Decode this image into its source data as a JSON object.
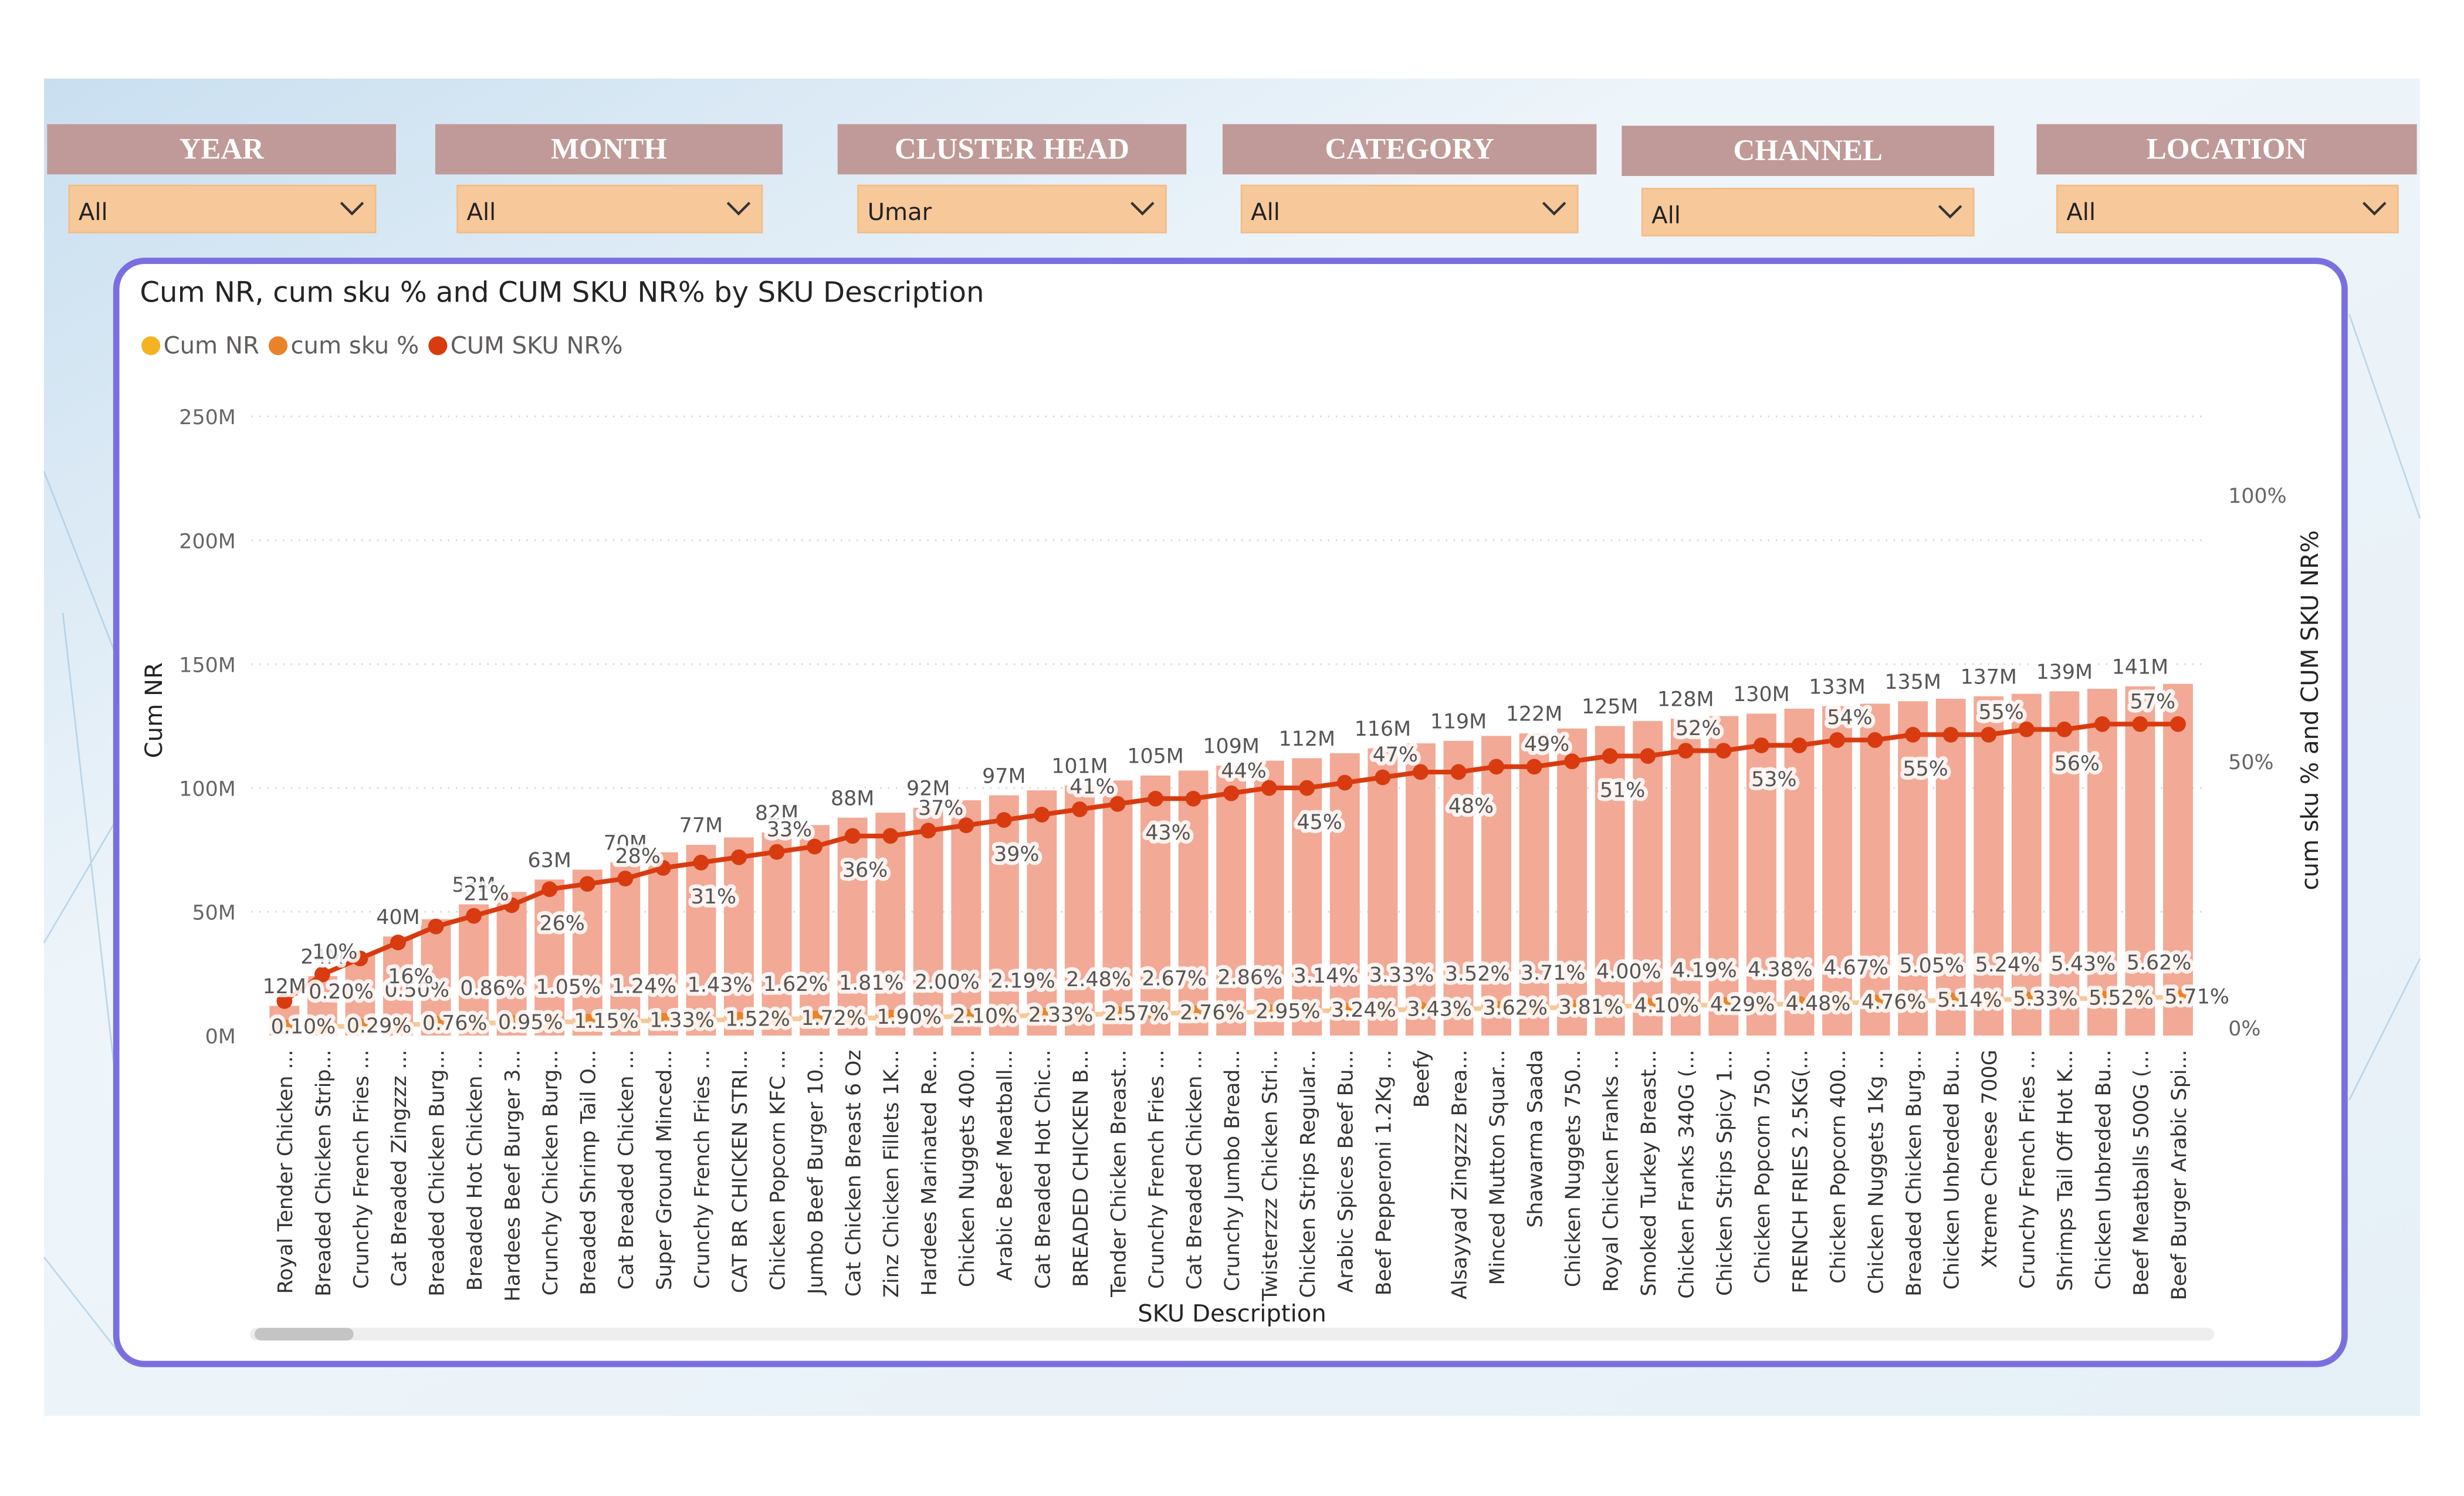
{
  "filters": [
    {
      "label": "YEAR",
      "value": "All"
    },
    {
      "label": "MONTH",
      "value": "All"
    },
    {
      "label": "CLUSTER HEAD",
      "value": "Umar"
    },
    {
      "label": "CATEGORY",
      "value": "All"
    },
    {
      "label": "CHANNEL",
      "value": "All"
    },
    {
      "label": "LOCATION",
      "value": "All"
    }
  ],
  "chart_data": {
    "type": "combo",
    "title": "Cum NR, cum sku % and CUM SKU NR% by SKU Description",
    "x_label": "SKU Description",
    "y_label": "Cum NR",
    "y2_label": "cum sku % and CUM SKU NR%",
    "grid": true,
    "legend": "top-left",
    "categories": [
      "Royal Tender Chicken ...",
      "Breaded Chicken Strip...",
      "Crunchy French Fries ...",
      "Cat Breaded Zingzzz ...",
      "Breaded Chicken Burg...",
      "Breaded Hot Chicken ...",
      "Hardees Beef Burger 3...",
      "Crunchy Chicken Burg...",
      "Breaded Shrimp Tail O...",
      "Cat Breaded Chicken ...",
      "Super Ground Minced...",
      "Crunchy French Fries ...",
      "CAT BR CHICKEN STRI...",
      "Chicken Popcorn KFC ...",
      "Jumbo Beef Burger 10...",
      "Cat Chicken Breast 6 Oz",
      "Zinz Chicken Fillets 1K...",
      "Hardees Marinated Re...",
      "Chicken Nuggets 400...",
      "Arabic Beef Meatball...",
      "Cat Breaded Hot Chic...",
      "BREADED CHICKEN B...",
      "Tender Chicken Breast...",
      "Crunchy French Fries ...",
      "Cat Breaded Chicken ...",
      "Crunchy Jumbo Bread...",
      "Twisterzzz Chicken Stri...",
      "Chicken Strips Regular...",
      "Arabic Spices Beef Bu...",
      "Beef Pepperoni 1.2Kg ...",
      "Beefy",
      "Alsayyad Zingzzz Brea...",
      "Minced Mutton Squar...",
      "Shawarma Saada",
      "Chicken Nuggets 750...",
      "Royal Chicken Franks ...",
      "Smoked Turkey Breast...",
      "Chicken Franks 340G (...",
      "Chicken Strips Spicy 1...",
      "Chicken Popcorn 750...",
      "FRENCH FRIES 2.5KG(...",
      "Chicken Popcorn 400...",
      "Chicken Nuggets 1Kg ...",
      "Breaded Chicken Burg...",
      "Chicken Unbreded Bu...",
      "Xtreme Cheese 700G",
      "Crunchy French Fries ...",
      "Shrimps Tail Off Hot K...",
      "Chicken Unbreded Bu...",
      "Beef Meatballs 500G (...",
      "Beef Burger Arabic Spi..."
    ],
    "ylim": [
      0,
      250000000
    ],
    "yticks": [
      {
        "value": 0,
        "label": "0M"
      },
      {
        "value": 50000000,
        "label": "50M"
      },
      {
        "value": 100000000,
        "label": "100M"
      },
      {
        "value": 150000000,
        "label": "150M"
      },
      {
        "value": 200000000,
        "label": "200M"
      },
      {
        "value": 250000000,
        "label": "250M"
      }
    ],
    "y2lim": [
      0,
      100
    ],
    "y2ticks": [
      {
        "value": 0,
        "label": "0%"
      },
      {
        "value": 50,
        "label": "50%"
      },
      {
        "value": 100,
        "label": "100%"
      }
    ],
    "series": [
      {
        "name": "Cum NR",
        "type": "bar",
        "color": "#f2a995",
        "legend_color": "#f5b324",
        "values": [
          12000000,
          24000000,
          33000000,
          40000000,
          47000000,
          53000000,
          58000000,
          63000000,
          67000000,
          70000000,
          74000000,
          77000000,
          80000000,
          82000000,
          85000000,
          88000000,
          90000000,
          92000000,
          95000000,
          97000000,
          99000000,
          101000000,
          103000000,
          105000000,
          107000000,
          109000000,
          111000000,
          112000000,
          114000000,
          116000000,
          118000000,
          119000000,
          121000000,
          122000000,
          124000000,
          125000000,
          127000000,
          128000000,
          129000000,
          130000000,
          132000000,
          133000000,
          134000000,
          135000000,
          136000000,
          137000000,
          138000000,
          139000000,
          140000000,
          141000000,
          142000000
        ],
        "value_labels": [
          "12M",
          "24M",
          null,
          "40M",
          null,
          "53M",
          null,
          "63M",
          null,
          "70M",
          null,
          "77M",
          null,
          "82M",
          null,
          "88M",
          null,
          "92M",
          null,
          "97M",
          null,
          "101M",
          null,
          "105M",
          null,
          "109M",
          null,
          "112M",
          null,
          "116M",
          null,
          "119M",
          null,
          "122M",
          null,
          "125M",
          null,
          "128M",
          null,
          "130M",
          null,
          "133M",
          null,
          "135M",
          null,
          "137M",
          null,
          "139M",
          null,
          "141M",
          null
        ]
      },
      {
        "name": "cum sku %",
        "type": "line",
        "axis": "y2",
        "color": "#e9832a",
        "line_color": "#f6c99a",
        "values": [
          0.1,
          0.2,
          0.29,
          0.5,
          0.76,
          0.86,
          0.95,
          1.05,
          1.15,
          1.24,
          1.33,
          1.43,
          1.52,
          1.62,
          1.72,
          1.81,
          1.9,
          2.0,
          2.1,
          2.19,
          2.33,
          2.48,
          2.57,
          2.67,
          2.76,
          2.86,
          2.95,
          3.14,
          3.24,
          3.33,
          3.43,
          3.52,
          3.62,
          3.71,
          3.81,
          4.0,
          4.1,
          4.19,
          4.29,
          4.38,
          4.48,
          4.67,
          4.76,
          5.05,
          5.14,
          5.24,
          5.33,
          5.43,
          5.52,
          5.62,
          5.71
        ],
        "value_labels": [
          "0.10%",
          "0.20%",
          "0.29%",
          "0.50%",
          "0.76%",
          "0.86%",
          "0.95%",
          "1.05%",
          "1.15%",
          "1.24%",
          "1.33%",
          "1.43%",
          "1.52%",
          "1.62%",
          "1.72%",
          "1.81%",
          "1.90%",
          "2.00%",
          "2.10%",
          "2.19%",
          "2.33%",
          "2.48%",
          "2.57%",
          "2.67%",
          "2.76%",
          "2.86%",
          "2.95%",
          "3.14%",
          "3.24%",
          "3.33%",
          "3.43%",
          "3.52%",
          "3.62%",
          "3.71%",
          "3.81%",
          "4.00%",
          "4.10%",
          "4.19%",
          "4.29%",
          "4.38%",
          "4.48%",
          "4.67%",
          "4.76%",
          "5.05%",
          "5.14%",
          "5.24%",
          "5.33%",
          "5.43%",
          "5.52%",
          "5.62%",
          "5.71%"
        ]
      },
      {
        "name": "CUM SKU NR%",
        "type": "line",
        "axis": "y2",
        "color": "#d83b10",
        "line_color": "#d83b10",
        "values": [
          5,
          10,
          13,
          16,
          19,
          21,
          23,
          26,
          27,
          28,
          30,
          31,
          32,
          33,
          34,
          36,
          36,
          37,
          38,
          39,
          40,
          41,
          42,
          43,
          43,
          44,
          45,
          45,
          46,
          47,
          48,
          48,
          49,
          49,
          50,
          51,
          51,
          52,
          52,
          53,
          53,
          54,
          54,
          55,
          55,
          55,
          56,
          56,
          57,
          57,
          57
        ],
        "value_labels": [
          null,
          "10%",
          null,
          "16%",
          null,
          "21%",
          null,
          "26%",
          null,
          "28%",
          null,
          "31%",
          null,
          "33%",
          null,
          "36%",
          null,
          "37%",
          null,
          "39%",
          null,
          "41%",
          null,
          "43%",
          null,
          "44%",
          null,
          "45%",
          null,
          "47%",
          null,
          "48%",
          null,
          "49%",
          null,
          "51%",
          null,
          "52%",
          null,
          "53%",
          null,
          "54%",
          null,
          "55%",
          null,
          "55%",
          null,
          "56%",
          null,
          "57%",
          null
        ]
      }
    ]
  }
}
